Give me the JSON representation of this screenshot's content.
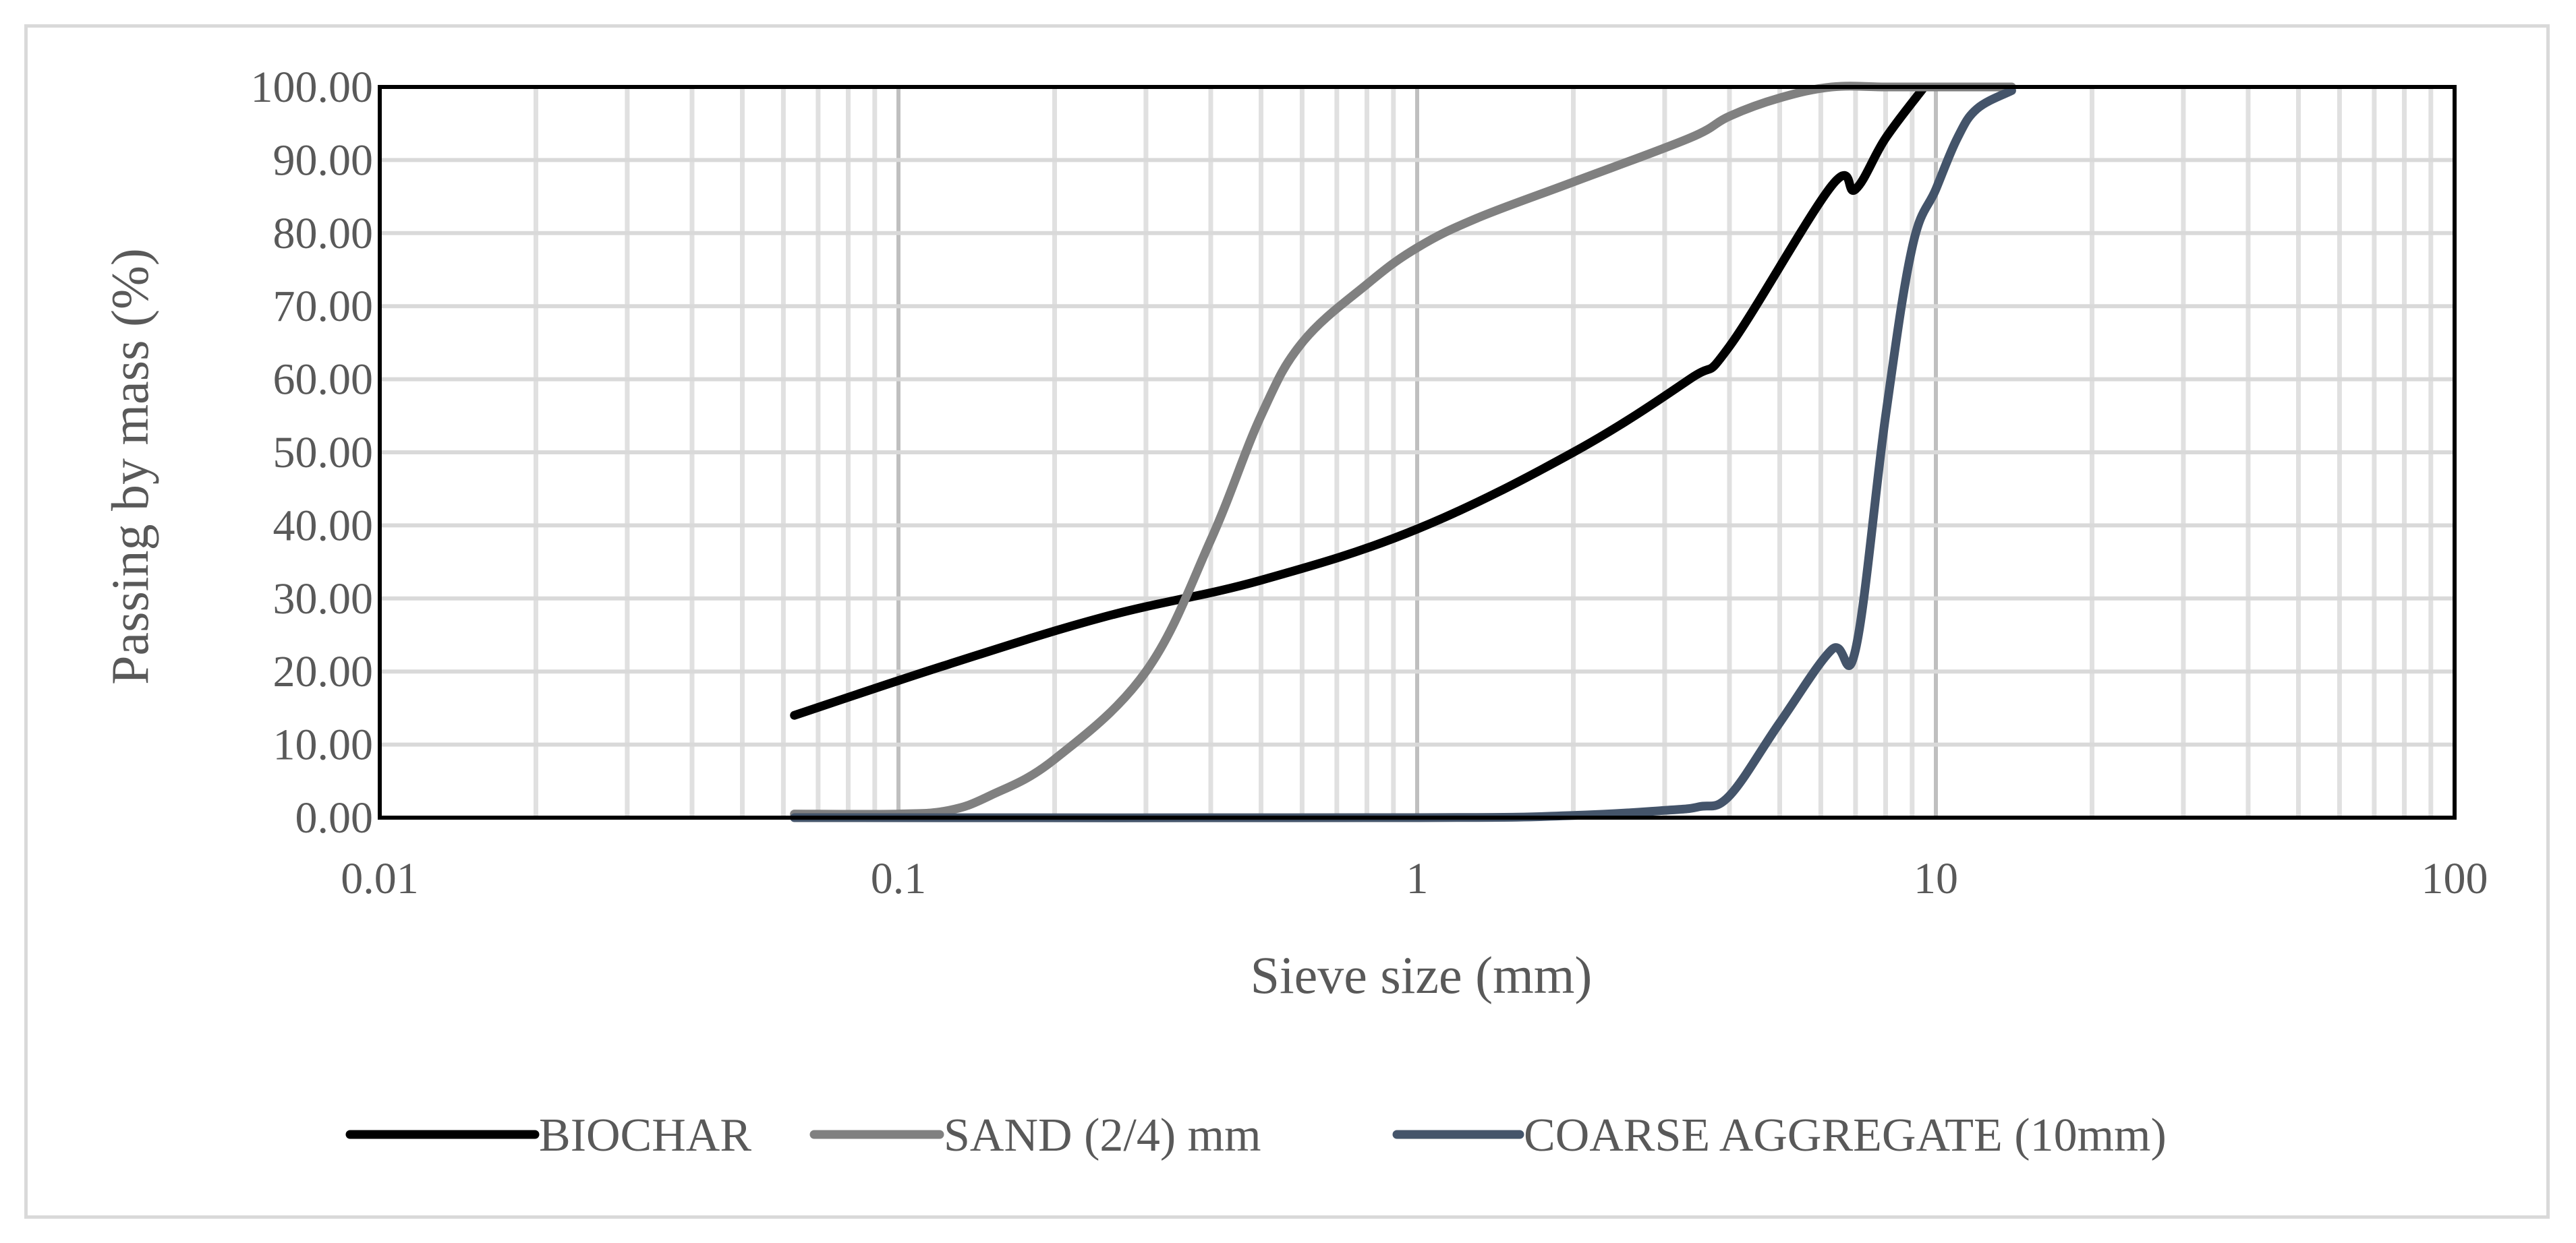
{
  "chart_data": {
    "type": "line",
    "title": "",
    "xlabel": "Sieve size (mm)",
    "ylabel": "Passing by mass (%)",
    "x_scale": "log",
    "xlim": [
      0.01,
      100
    ],
    "ylim": [
      0,
      100
    ],
    "x_ticks": [
      0.01,
      0.1,
      1,
      10,
      100
    ],
    "x_tick_labels": [
      "0.01",
      "0.1",
      "1",
      "10",
      "100"
    ],
    "y_ticks": [
      0,
      10,
      20,
      30,
      40,
      50,
      60,
      70,
      80,
      90,
      100
    ],
    "y_tick_labels": [
      "0.00",
      "10.00",
      "20.00",
      "30.00",
      "40.00",
      "50.00",
      "60.00",
      "70.00",
      "80.00",
      "90.00",
      "100.00"
    ],
    "grid": true,
    "legend_position": "bottom",
    "series": [
      {
        "name": "BIOCHAR",
        "color": "#000000",
        "x": [
          0.063,
          0.125,
          0.25,
          0.5,
          1,
          2,
          3.35,
          4,
          6.3,
          7,
          8,
          9.5
        ],
        "y": [
          14,
          21,
          27.5,
          32.5,
          39.5,
          50,
          60,
          64.5,
          86.5,
          86,
          93,
          100
        ]
      },
      {
        "name": "SAND (2/4) mm",
        "color": "#808080",
        "x": [
          0.063,
          0.1,
          0.125,
          0.15,
          0.2,
          0.3,
          0.4,
          0.5,
          0.6,
          0.8,
          1,
          1.3,
          2,
          3.35,
          4,
          5,
          6.3,
          8,
          10,
          14
        ],
        "y": [
          0.5,
          0.5,
          1,
          3,
          8,
          20,
          38,
          55,
          65,
          73,
          78,
          82,
          87,
          93,
          96,
          98.5,
          100,
          100,
          100,
          100
        ]
      },
      {
        "name": "COARSE AGGREGATE (10mm)",
        "color": "#44546a",
        "x": [
          0.063,
          1,
          2,
          3,
          3.5,
          4,
          5,
          6.3,
          7,
          8,
          9,
          10,
          11,
          12,
          14
        ],
        "y": [
          0,
          0,
          0.3,
          1,
          1.5,
          3,
          13,
          23,
          23,
          55,
          78,
          86,
          93,
          97,
          99.5
        ]
      }
    ]
  }
}
